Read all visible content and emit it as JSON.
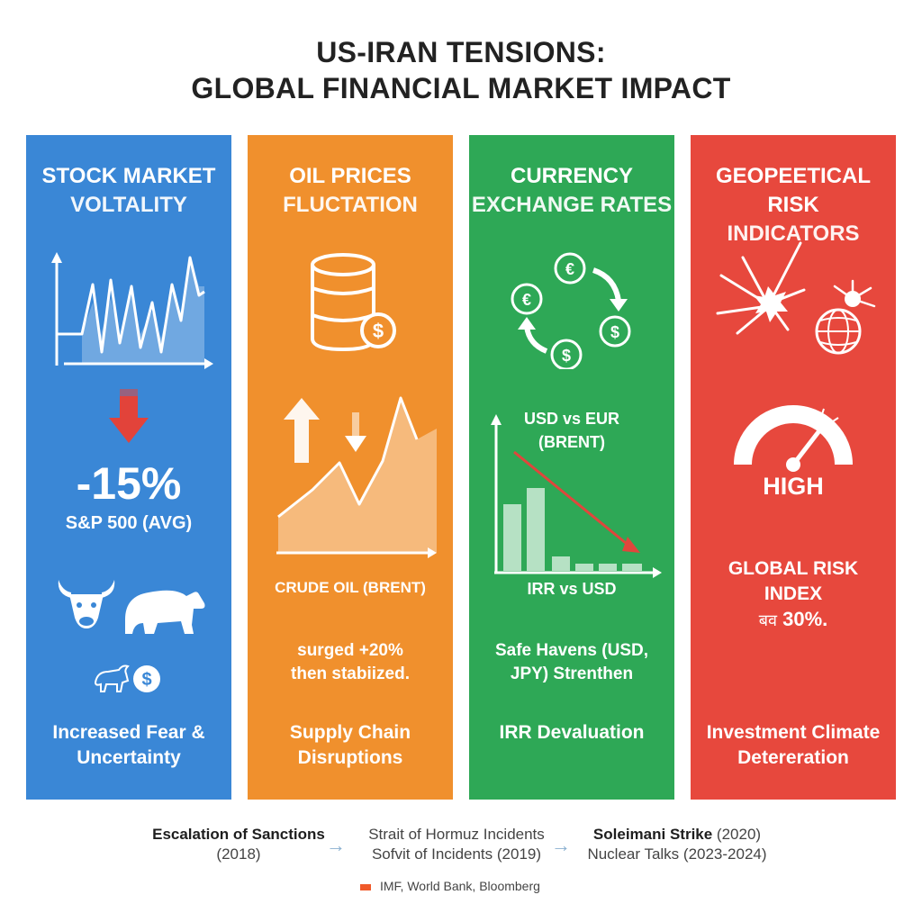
{
  "title": {
    "line1": "US-IRAN TENSIONS:",
    "line2": "GLOBAL FINANCIAL MARKET IMPACT"
  },
  "panels": [
    {
      "color": "#3a87d6",
      "title_line1": "STOCK MARKET",
      "title_line2": "VOLTALITY",
      "big_value": "-15%",
      "value_label": "S&P 500 (AVG)",
      "footer_line1": "Increased Fear &",
      "footer_line2": "Uncertainty",
      "icons": [
        "line-chart-icon",
        "down-arrow-icon",
        "bull-icon",
        "bear-icon",
        "bull-small-icon",
        "dollar-coin-icon"
      ]
    },
    {
      "color": "#f0902d",
      "title_line1": "OIL PRICES",
      "title_line2": "FLUCTATION",
      "label": "CRUDE OIL (BRENT)",
      "desc_line1": "surged +20%",
      "desc_line2": "then stabiized.",
      "footer_line1": "Supply Chain",
      "footer_line2": "Disruptions",
      "icons": [
        "oil-barrel-icon",
        "dollar-coin-icon",
        "up-arrow-icon",
        "down-arrow-icon",
        "area-chart-icon"
      ]
    },
    {
      "color": "#2ea856",
      "title_line1": "CURRENCY",
      "title_line2": "EXCHANGE RATES",
      "chart_label_line1": "USD vs EUR",
      "chart_label_line2": "(BRENT)",
      "axis_label": "IRR vs USD",
      "desc_line1": "Safe Havens (USD,",
      "desc_line2": "JPY) Strenthen",
      "footer_line1": "IRR Devaluation",
      "icons": [
        "currency-exchange-icon",
        "euro-coin-icon",
        "dollar-coin-icon",
        "bar-chart-icon"
      ]
    },
    {
      "color": "#e7483d",
      "title_line1": "GEOPEETICAL RISK",
      "title_line2": "INDICATORS",
      "gauge_label": "HIGH",
      "index_line1": "GLOBAL RISK",
      "index_line2": "INDEX",
      "index_prefix": "बव",
      "index_value": "30%.",
      "footer_line1": "Investment Climate",
      "footer_line2": "Detereration",
      "icons": [
        "explosion-icon",
        "globe-icon",
        "gauge-icon"
      ]
    }
  ],
  "timeline": [
    {
      "bold": "Escalation of Sanctions",
      "sub": "(2018)"
    },
    {
      "bold": "Strait of Hormuz Incidents",
      "sub": "Sofvit of Incidents (2019)"
    },
    {
      "bold": "Soleimani Strike",
      "bold_suffix": " (2020)",
      "sub": "Nuclear Talks (2023-2024)"
    }
  ],
  "source": "IMF, World Bank, Bloomberg"
}
